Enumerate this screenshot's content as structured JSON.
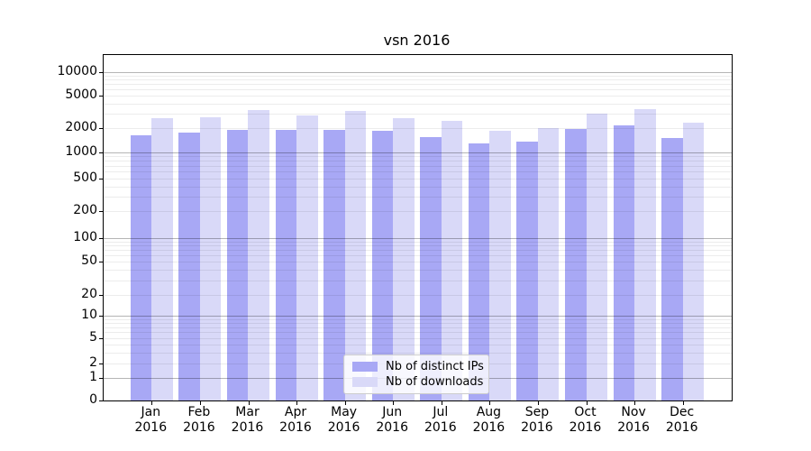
{
  "title": "vsn 2016",
  "legend": {
    "items": [
      {
        "label": "Nb of distinct IPs",
        "color": "#a8a8f5"
      },
      {
        "label": "Nb of downloads",
        "color": "#d9d9f8"
      }
    ]
  },
  "chart_data": {
    "type": "bar",
    "title": "vsn 2016",
    "categories": [
      "Jan",
      "Feb",
      "Mar",
      "Apr",
      "May",
      "Jun",
      "Jul",
      "Aug",
      "Sep",
      "Oct",
      "Nov",
      "Dec"
    ],
    "category_year": "2016",
    "series": [
      {
        "name": "Nb of distinct IPs",
        "color": "#a8a8f5",
        "values": [
          1620,
          1750,
          1880,
          1880,
          1890,
          1840,
          1560,
          1280,
          1360,
          1930,
          2150,
          1500
        ]
      },
      {
        "name": "Nb of downloads",
        "color": "#d9d9f8",
        "values": [
          2650,
          2700,
          3300,
          2840,
          3230,
          2650,
          2460,
          1870,
          2010,
          3000,
          3390,
          2350
        ]
      }
    ],
    "xlabel": "",
    "ylabel": "",
    "yscale": "symlog",
    "yticks": [
      0,
      1,
      2,
      5,
      10,
      20,
      50,
      100,
      200,
      500,
      1000,
      2000,
      5000,
      10000
    ],
    "ylim": [
      0,
      16000
    ],
    "grid": "on (log minor + major horizontal lines)",
    "legend_position": "lower center"
  }
}
